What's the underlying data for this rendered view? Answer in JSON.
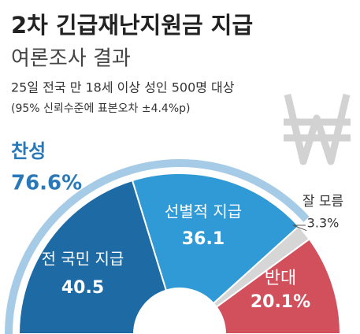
{
  "chart_data": {
    "type": "half-donut",
    "title": "2차 긴급재난지원금 지급",
    "subtitle": "여론조사 결과",
    "notes": [
      "25일 전국 만 18세 이상 성인 500명 대상",
      "(95% 신뢰수준에 표본오차 ±4.4%p)"
    ],
    "categories": [
      "전 국민 지급",
      "선별적 지급",
      "잘 모름",
      "반대"
    ],
    "values": [
      40.5,
      36.1,
      3.3,
      20.1
    ],
    "value_labels": [
      "40.5",
      "36.1",
      "3.3%",
      "20.1%"
    ],
    "colors": [
      "#1d6aa5",
      "#2f9ad5",
      "#d6d6d6",
      "#d24f5c"
    ],
    "summary": {
      "name": "찬성",
      "value": 76.6,
      "value_label": "76.6%",
      "color": "#a6cbe6"
    }
  }
}
